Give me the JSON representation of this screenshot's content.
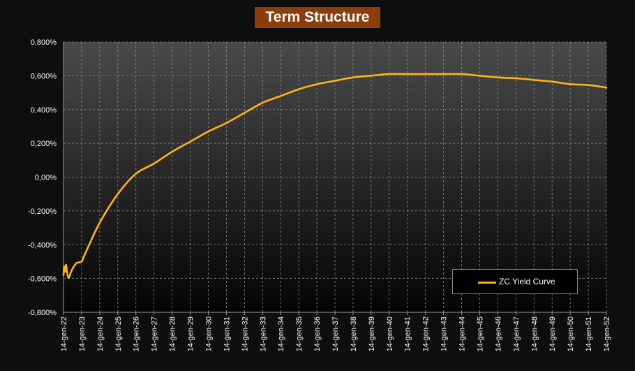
{
  "chart_data": {
    "type": "line",
    "title": "Term Structure",
    "xlabel": "",
    "ylabel": "",
    "ylim": [
      -0.8,
      0.8
    ],
    "y_ticks": [
      "0,800%",
      "0,600%",
      "0,400%",
      "0,200%",
      "0,00%",
      "-0,200%",
      "-0,400%",
      "-0,600%",
      "-0,800%"
    ],
    "categories": [
      "14-gen-22",
      "14-gen-23",
      "14-gen-24",
      "14-gen-25",
      "14-gen-26",
      "14-gen-27",
      "14-gen-28",
      "14-gen-29",
      "14-gen-30",
      "14-gen-31",
      "14-gen-32",
      "14-gen-33",
      "14-gen-34",
      "14-gen-35",
      "14-gen-36",
      "14-gen-37",
      "14-gen-38",
      "14-gen-39",
      "14-gen-40",
      "14-gen-41",
      "14-gen-42",
      "14-gen-43",
      "14-gen-44",
      "14-gen-45",
      "14-gen-46",
      "14-gen-47",
      "14-gen-48",
      "14-gen-49",
      "14-gen-50",
      "14-gen-51",
      "14-gen-52"
    ],
    "series": [
      {
        "name": "ZC Yield Curve",
        "color": "#ffb414",
        "x": [
          "2022-01-14",
          "2022-01-24",
          "2022-02-03",
          "2022-02-14",
          "2022-03-04",
          "2022-03-14",
          "2022-04-01",
          "2022-05-01",
          "2022-07-01",
          "2022-10-01",
          "2023-01-14",
          "2023-03-01",
          "2023-06-01",
          "2024-01-14",
          "2025-01-14",
          "2026-01-14",
          "2027-01-14",
          "2028-01-14",
          "2029-01-14",
          "2030-01-14",
          "2031-01-14",
          "2032-01-14",
          "2033-01-14",
          "2034-01-14",
          "2035-01-14",
          "2036-01-14",
          "2037-01-14",
          "2038-01-14",
          "2039-01-14",
          "2040-01-14",
          "2041-01-14",
          "2042-01-14",
          "2043-01-14",
          "2044-01-14",
          "2045-01-14",
          "2046-01-14",
          "2047-01-14",
          "2048-01-14",
          "2049-01-14",
          "2050-01-14",
          "2051-01-14",
          "2052-01-14"
        ],
        "values": [
          -0.58,
          -0.53,
          -0.54,
          -0.56,
          -0.52,
          -0.53,
          -0.57,
          -0.595,
          -0.55,
          -0.51,
          -0.5,
          -0.47,
          -0.41,
          -0.27,
          -0.1,
          0.02,
          0.08,
          0.15,
          0.21,
          0.27,
          0.32,
          0.38,
          0.44,
          0.48,
          0.52,
          0.55,
          0.57,
          0.59,
          0.6,
          0.61,
          0.61,
          0.61,
          0.61,
          0.61,
          0.6,
          0.59,
          0.585,
          0.575,
          0.565,
          0.55,
          0.545,
          0.53
        ]
      }
    ],
    "grid": true,
    "legend": "bottom-right"
  }
}
